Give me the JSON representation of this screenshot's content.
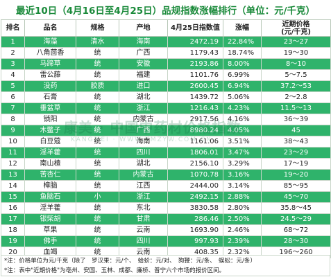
{
  "title": "最近10日（4月16日至4月25日）品规指数涨幅排行（单位：元/千克）",
  "headers": {
    "rank": "排名",
    "name": "品名",
    "spec": "规格",
    "origin": "产地",
    "index": "4月25日指数值",
    "change": "涨幅",
    "price_line1": "近期价格",
    "price_line2": "(元/千克)"
  },
  "rows": [
    {
      "rank": "1",
      "name": "海藻",
      "spec": "清水",
      "origin": "海南",
      "index": "2472.19",
      "change": "22.84%",
      "price": "23～27"
    },
    {
      "rank": "2",
      "name": "八角茴香",
      "spec": "统",
      "origin": "广西",
      "index": "1179.43",
      "change": "18.74%",
      "price": "19～30"
    },
    {
      "rank": "3",
      "name": "马蹄草",
      "spec": "统",
      "origin": "安徽",
      "index": "2193.86",
      "change": "8.00%",
      "price": "8～10"
    },
    {
      "rank": "4",
      "name": "雷公藤",
      "spec": "统",
      "origin": "福建",
      "index": "1101.76",
      "change": "6.99%",
      "price": "5～7.5"
    },
    {
      "rank": "5",
      "name": "没药",
      "spec": "胶质",
      "origin": "进口",
      "index": "2600.45",
      "change": "6.94%",
      "price": "37.2～53"
    },
    {
      "rank": "6",
      "name": "石膏",
      "spec": "统",
      "origin": "湖北",
      "index": "1439.72",
      "change": "5.06%",
      "price": "2～2.8"
    },
    {
      "rank": "7",
      "name": "垂盆草",
      "spec": "统",
      "origin": "浙江",
      "index": "1216.43",
      "change": "4.23%",
      "price": "11.5～13"
    },
    {
      "rank": "8",
      "name": "锁阳",
      "spec": "统",
      "origin": "内蒙古",
      "index": "2917.56",
      "change": "4.16%",
      "price": "36～39"
    },
    {
      "rank": "9",
      "name": "木鳖子",
      "spec": "统",
      "origin": "广西",
      "index": "8980.24",
      "change": "4.05%",
      "price": "45"
    },
    {
      "rank": "10",
      "name": "白豆蔻",
      "spec": "统",
      "origin": "海南",
      "index": "1161.06",
      "change": "3.51%",
      "price": "38～43"
    },
    {
      "rank": "11",
      "name": "淫羊藿",
      "spec": "统",
      "origin": "四川",
      "index": "1806.01",
      "change": "3.47%",
      "price": "23～29"
    },
    {
      "rank": "12",
      "name": "南山楂",
      "spec": "统",
      "origin": "湖北",
      "index": "2156.10",
      "change": "3.29%",
      "price": "17～19"
    },
    {
      "rank": "13",
      "name": "苦杏仁",
      "spec": "统",
      "origin": "内蒙古",
      "index": "1070.78",
      "change": "3.16%",
      "price": "19～20"
    },
    {
      "rank": "14",
      "name": "樟脑",
      "spec": "统",
      "origin": "江西",
      "index": "2444.00",
      "change": "3.14%",
      "price": "85～95"
    },
    {
      "rank": "15",
      "name": "鱼脑石",
      "spec": "小",
      "origin": "浙江",
      "index": "2492.15",
      "change": "2.88%",
      "price": "45～70"
    },
    {
      "rank": "16",
      "name": "淫羊藿",
      "spec": "统",
      "origin": "东北",
      "index": "3830.58",
      "change": "2.80%",
      "price": "35.8～45"
    },
    {
      "rank": "17",
      "name": "银柴胡",
      "spec": "统",
      "origin": "甘肃",
      "index": "286.46",
      "change": "2.50%",
      "price": "24.5～29"
    },
    {
      "rank": "18",
      "name": "草果",
      "spec": "统",
      "origin": "云南",
      "index": "1693.90",
      "change": "2.46%",
      "price": "68～72"
    },
    {
      "rank": "19",
      "name": "佛手",
      "spec": "统",
      "origin": "四川",
      "index": "997.93",
      "change": "2.39%",
      "price": "28～30"
    },
    {
      "rank": "20",
      "name": "血竭",
      "spec": "统",
      "origin": "云南",
      "index": "408.35",
      "change": "2.32%",
      "price": "196～260"
    }
  ],
  "notes": [
    "*注：价格单位为元/千克（除了　罗汉果：元/个、　蛤蚧：元/对、　狗鞭：元/条、　蜈蚣：元/条）",
    "*注：表中\"近期价格\"为亳州、安国、玉林、成都、廉桥、普宁六个市场的报价区间。"
  ],
  "watermark": {
    "main": "康美 · 中国中药材价格指数",
    "sub": "KANGMEI  ·  WWW.KMZYW.COM.CN"
  },
  "colors": {
    "title": "#1a8a3a",
    "row_green": "#2fb36b",
    "row_white": "#ffffff"
  }
}
